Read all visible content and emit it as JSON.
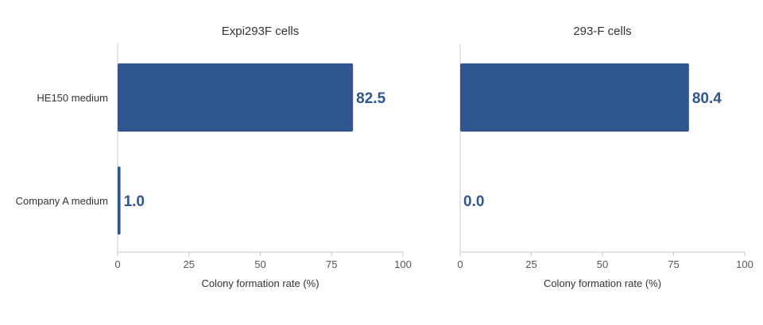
{
  "chart_data": [
    {
      "type": "bar",
      "orientation": "horizontal",
      "title": "Expi293F cells",
      "categories": [
        "HE150 medium",
        "Company A medium"
      ],
      "values": [
        82.5,
        1.0
      ],
      "value_labels": [
        "82.5",
        "1.0"
      ],
      "xlabel": "Colony formation rate (%)",
      "xlim": [
        0,
        100
      ],
      "xticks": [
        "0",
        "25",
        "50",
        "75",
        "100"
      ],
      "color": "#30568f",
      "grid": false
    },
    {
      "type": "bar",
      "orientation": "horizontal",
      "title": "293-F cells",
      "categories": [
        "HE150 medium",
        "Company A medium"
      ],
      "values": [
        80.4,
        0.0
      ],
      "value_labels": [
        "80.4",
        "0.0"
      ],
      "xlabel": "Colony formation rate (%)",
      "xlim": [
        0,
        100
      ],
      "xticks": [
        "0",
        "25",
        "50",
        "75",
        "100"
      ],
      "color": "#30568f",
      "grid": false
    }
  ]
}
